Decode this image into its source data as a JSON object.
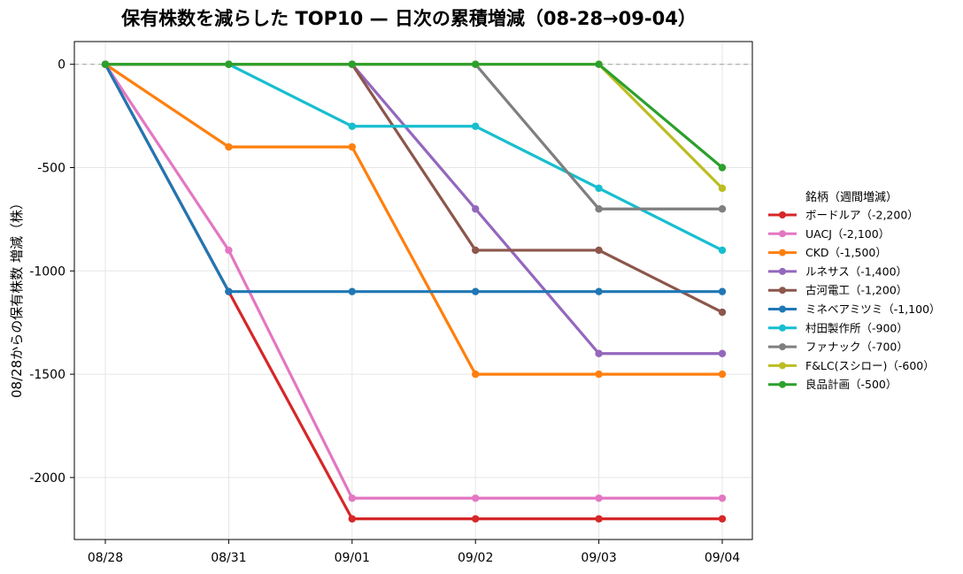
{
  "chart_data": {
    "type": "line",
    "title": "保有株数を減らした TOP10 — 日次の累積増減（08-28→09-04）",
    "xlabel": "",
    "ylabel": "08/28からの保有株数 増減（株）",
    "categories": [
      "08/28",
      "08/31",
      "09/01",
      "09/02",
      "09/03",
      "09/04"
    ],
    "ylim": [
      -2300,
      110
    ],
    "yticks": [
      0,
      -500,
      -1000,
      -1500,
      -2000
    ],
    "ytick_labels": [
      "0",
      "-500",
      "-1000",
      "-1500",
      "-2000"
    ],
    "grid": true,
    "zero_reference_line": true,
    "legend": {
      "title": "銘柄（週間増減）",
      "placement": "right"
    },
    "series": [
      {
        "name": "ボードルア（-2,200）",
        "color": "#d62728",
        "values": [
          0,
          -1100,
          -2200,
          -2200,
          -2200,
          -2200
        ]
      },
      {
        "name": "UACJ（-2,100）",
        "color": "#e377c2",
        "values": [
          0,
          -900,
          -2100,
          -2100,
          -2100,
          -2100
        ]
      },
      {
        "name": "CKD（-1,500）",
        "color": "#ff7f0e",
        "values": [
          0,
          -400,
          -400,
          -1500,
          -1500,
          -1500
        ]
      },
      {
        "name": "ルネサス（-1,400）",
        "color": "#9467bd",
        "values": [
          0,
          0,
          0,
          -700,
          -1400,
          -1400
        ]
      },
      {
        "name": "古河電工（-1,200）",
        "color": "#8c564b",
        "values": [
          0,
          0,
          0,
          -900,
          -900,
          -1200
        ]
      },
      {
        "name": "ミネベアミツミ（-1,100）",
        "color": "#1f77b4",
        "values": [
          0,
          -1100,
          -1100,
          -1100,
          -1100,
          -1100
        ]
      },
      {
        "name": "村田製作所（-900）",
        "color": "#17becf",
        "values": [
          0,
          0,
          -300,
          -300,
          -600,
          -900
        ]
      },
      {
        "name": "ファナック（-700）",
        "color": "#7f7f7f",
        "values": [
          0,
          0,
          0,
          0,
          -700,
          -700
        ]
      },
      {
        "name": "F&LC(スシロー)（-600）",
        "color": "#bcbd22",
        "values": [
          0,
          0,
          0,
          0,
          0,
          -600
        ]
      },
      {
        "name": "良品計画（-500）",
        "color": "#2ca02c",
        "values": [
          0,
          0,
          0,
          0,
          0,
          -500
        ]
      }
    ]
  }
}
